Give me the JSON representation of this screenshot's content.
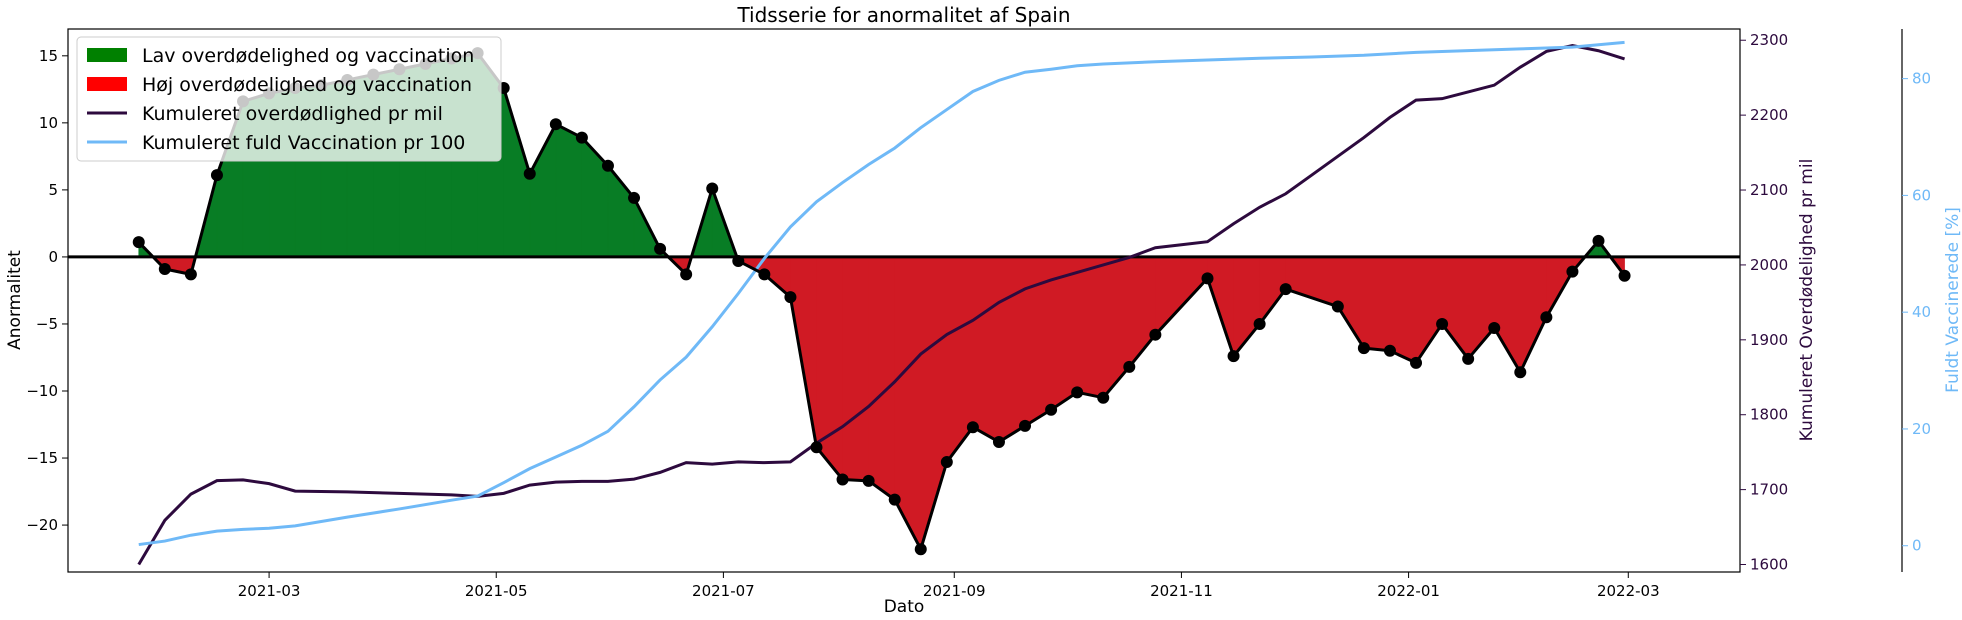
{
  "chart_data": {
    "type": "area",
    "title": "Tidsserie for anormalitet af Spain",
    "xlabel": "Dato",
    "ylabel_left": "Anormalitet",
    "ylabel_right1": "Kumuleret Overdødelighed pr mil",
    "ylabel_right2": "Fuldt Vaccinerede [%]",
    "xlim": [
      "2021-01-06",
      "2022-03-31"
    ],
    "ylim_left": [
      -23.5,
      17.0
    ],
    "ylim_right1": [
      1590,
      2315
    ],
    "ylim_right2": [
      -4.5,
      88.5
    ],
    "x_ticks": [
      "2021-03-01",
      "2021-05-01",
      "2021-07-01",
      "2021-09-01",
      "2021-11-01",
      "2022-01-01",
      "2022-03-01"
    ],
    "x_tick_labels": [
      "2021-03",
      "2021-05",
      "2021-07",
      "2021-09",
      "2021-11",
      "2022-01",
      "2022-03"
    ],
    "y_ticks_left": [
      -20,
      -15,
      -10,
      -5,
      0,
      5,
      10,
      15
    ],
    "y_ticks_right1": [
      1600,
      1700,
      1800,
      1900,
      2000,
      2100,
      2200,
      2300
    ],
    "y_ticks_right2": [
      0,
      20,
      40,
      60,
      80
    ],
    "legend": {
      "position": "top-left",
      "entries": [
        {
          "label": "Lav overdødelighed og vaccination",
          "kind": "patch",
          "color": "#008000"
        },
        {
          "label": "Høj overdødelighed og vaccination",
          "kind": "patch",
          "color": "#ff0000"
        },
        {
          "label": "Kumuleret overdødlighed pr mil",
          "kind": "line",
          "color": "#2d0a3e"
        },
        {
          "label": "Kumuleret fuld Vaccination pr 100",
          "kind": "line",
          "color": "#6fb9f7"
        }
      ]
    },
    "colors": {
      "positive_fill": "#087d25",
      "negative_fill": "#d01a24",
      "anomaly_line": "#000000",
      "excess_line": "#2d0a3e",
      "vaccination_line": "#6fb9f7"
    },
    "series": [
      {
        "name": "Anormalitet",
        "axis": "left",
        "points": [
          [
            "2021-01-25",
            1.1
          ],
          [
            "2021-02-01",
            -0.9
          ],
          [
            "2021-02-08",
            -1.3
          ],
          [
            "2021-02-15",
            6.1
          ],
          [
            "2021-02-22",
            11.6
          ],
          [
            "2021-03-01",
            12.2
          ],
          [
            "2021-03-08",
            12.6
          ],
          [
            "2021-03-15",
            12.8
          ],
          [
            "2021-03-22",
            13.2
          ],
          [
            "2021-03-29",
            13.6
          ],
          [
            "2021-04-05",
            14.0
          ],
          [
            "2021-04-12",
            14.4
          ],
          [
            "2021-04-19",
            14.8
          ],
          [
            "2021-04-26",
            15.2
          ],
          [
            "2021-05-03",
            12.6
          ],
          [
            "2021-05-10",
            6.2
          ],
          [
            "2021-05-17",
            9.9
          ],
          [
            "2021-05-24",
            8.9
          ],
          [
            "2021-05-31",
            6.8
          ],
          [
            "2021-06-07",
            4.4
          ],
          [
            "2021-06-14",
            0.6
          ],
          [
            "2021-06-21",
            -1.3
          ],
          [
            "2021-06-28",
            5.1
          ],
          [
            "2021-07-05",
            -0.3
          ],
          [
            "2021-07-12",
            -1.3
          ],
          [
            "2021-07-19",
            -3.0
          ],
          [
            "2021-07-26",
            -14.2
          ],
          [
            "2021-08-02",
            -16.6
          ],
          [
            "2021-08-09",
            -16.7
          ],
          [
            "2021-08-16",
            -18.1
          ],
          [
            "2021-08-23",
            -21.8
          ],
          [
            "2021-08-30",
            -15.3
          ],
          [
            "2021-09-06",
            -12.7
          ],
          [
            "2021-09-13",
            -13.8
          ],
          [
            "2021-09-20",
            -12.6
          ],
          [
            "2021-09-27",
            -11.4
          ],
          [
            "2021-10-04",
            -10.1
          ],
          [
            "2021-10-11",
            -10.5
          ],
          [
            "2021-10-18",
            -8.2
          ],
          [
            "2021-10-25",
            -5.8
          ],
          [
            "2021-11-08",
            -1.6
          ],
          [
            "2021-11-15",
            -7.4
          ],
          [
            "2021-11-22",
            -5.0
          ],
          [
            "2021-11-29",
            -2.4
          ],
          [
            "2021-12-13",
            -3.7
          ],
          [
            "2021-12-20",
            -6.8
          ],
          [
            "2021-12-27",
            -7.0
          ],
          [
            "2022-01-03",
            -7.9
          ],
          [
            "2022-01-10",
            -5.0
          ],
          [
            "2022-01-17",
            -7.6
          ],
          [
            "2022-01-24",
            -5.3
          ],
          [
            "2022-01-31",
            -8.6
          ],
          [
            "2022-02-07",
            -4.5
          ],
          [
            "2022-02-14",
            -1.1
          ],
          [
            "2022-02-21",
            1.2
          ],
          [
            "2022-02-28",
            -1.4
          ]
        ]
      },
      {
        "name": "Kumuleret overdødlighed pr mil",
        "axis": "right1",
        "points": [
          [
            "2021-01-25",
            1600
          ],
          [
            "2021-02-01",
            1659
          ],
          [
            "2021-02-08",
            1694
          ],
          [
            "2021-02-15",
            1712
          ],
          [
            "2021-02-22",
            1713
          ],
          [
            "2021-03-01",
            1708
          ],
          [
            "2021-03-08",
            1698
          ],
          [
            "2021-03-22",
            1697
          ],
          [
            "2021-04-05",
            1695
          ],
          [
            "2021-04-19",
            1693
          ],
          [
            "2021-04-26",
            1691
          ],
          [
            "2021-05-03",
            1695
          ],
          [
            "2021-05-10",
            1706
          ],
          [
            "2021-05-17",
            1710
          ],
          [
            "2021-05-24",
            1711
          ],
          [
            "2021-05-31",
            1711
          ],
          [
            "2021-06-07",
            1714
          ],
          [
            "2021-06-14",
            1723
          ],
          [
            "2021-06-21",
            1736
          ],
          [
            "2021-06-28",
            1734
          ],
          [
            "2021-07-05",
            1737
          ],
          [
            "2021-07-12",
            1736
          ],
          [
            "2021-07-19",
            1737
          ],
          [
            "2021-07-26",
            1762
          ],
          [
            "2021-08-02",
            1784
          ],
          [
            "2021-08-09",
            1811
          ],
          [
            "2021-08-16",
            1844
          ],
          [
            "2021-08-23",
            1881
          ],
          [
            "2021-08-30",
            1907
          ],
          [
            "2021-09-06",
            1926
          ],
          [
            "2021-09-13",
            1950
          ],
          [
            "2021-09-20",
            1968
          ],
          [
            "2021-09-27",
            1980
          ],
          [
            "2021-10-04",
            1990
          ],
          [
            "2021-10-11",
            2000
          ],
          [
            "2021-10-18",
            2010
          ],
          [
            "2021-10-25",
            2023
          ],
          [
            "2021-11-01",
            2027
          ],
          [
            "2021-11-08",
            2031
          ],
          [
            "2021-11-15",
            2055
          ],
          [
            "2021-11-22",
            2077
          ],
          [
            "2021-11-29",
            2095
          ],
          [
            "2021-12-06",
            2120
          ],
          [
            "2021-12-13",
            2145
          ],
          [
            "2021-12-20",
            2170
          ],
          [
            "2021-12-27",
            2197
          ],
          [
            "2022-01-03",
            2220
          ],
          [
            "2022-01-10",
            2222
          ],
          [
            "2022-01-17",
            2231
          ],
          [
            "2022-01-24",
            2240
          ],
          [
            "2022-01-31",
            2264
          ],
          [
            "2022-02-07",
            2285
          ],
          [
            "2022-02-14",
            2293
          ],
          [
            "2022-02-21",
            2286
          ],
          [
            "2022-02-28",
            2275
          ]
        ]
      },
      {
        "name": "Kumuleret fuld Vaccination pr 100",
        "axis": "right2",
        "points": [
          [
            "2021-01-25",
            0.2
          ],
          [
            "2021-02-01",
            0.8
          ],
          [
            "2021-02-08",
            1.8
          ],
          [
            "2021-02-15",
            2.5
          ],
          [
            "2021-02-22",
            2.8
          ],
          [
            "2021-03-01",
            3.0
          ],
          [
            "2021-03-08",
            3.4
          ],
          [
            "2021-03-22",
            4.9
          ],
          [
            "2021-04-05",
            6.3
          ],
          [
            "2021-04-19",
            7.8
          ],
          [
            "2021-04-26",
            8.5
          ],
          [
            "2021-05-03",
            10.8
          ],
          [
            "2021-05-10",
            13.2
          ],
          [
            "2021-05-17",
            15.2
          ],
          [
            "2021-05-24",
            17.2
          ],
          [
            "2021-05-31",
            19.6
          ],
          [
            "2021-06-07",
            23.8
          ],
          [
            "2021-06-14",
            28.4
          ],
          [
            "2021-06-21",
            32.3
          ],
          [
            "2021-06-28",
            37.5
          ],
          [
            "2021-07-05",
            43.2
          ],
          [
            "2021-07-12",
            49.2
          ],
          [
            "2021-07-19",
            54.6
          ],
          [
            "2021-07-26",
            58.9
          ],
          [
            "2021-08-02",
            62.2
          ],
          [
            "2021-08-09",
            65.3
          ],
          [
            "2021-08-16",
            68.1
          ],
          [
            "2021-08-23",
            71.6
          ],
          [
            "2021-08-30",
            74.7
          ],
          [
            "2021-09-06",
            77.8
          ],
          [
            "2021-09-13",
            79.7
          ],
          [
            "2021-09-20",
            81.1
          ],
          [
            "2021-09-27",
            81.6
          ],
          [
            "2021-10-04",
            82.2
          ],
          [
            "2021-10-11",
            82.5
          ],
          [
            "2021-10-25",
            82.9
          ],
          [
            "2021-11-08",
            83.2
          ],
          [
            "2021-11-22",
            83.5
          ],
          [
            "2021-12-06",
            83.7
          ],
          [
            "2021-12-20",
            84.0
          ],
          [
            "2022-01-03",
            84.5
          ],
          [
            "2022-01-17",
            84.8
          ],
          [
            "2022-01-31",
            85.1
          ],
          [
            "2022-02-14",
            85.4
          ],
          [
            "2022-02-28",
            86.2
          ]
        ]
      }
    ]
  }
}
